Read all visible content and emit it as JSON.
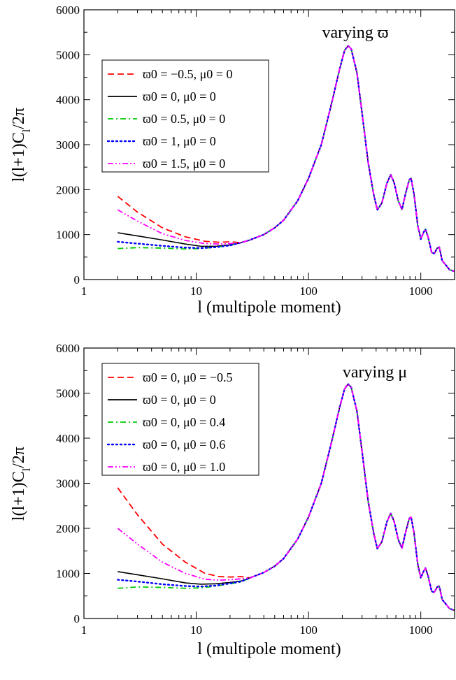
{
  "chart_data": [
    {
      "type": "line",
      "title": "",
      "annotation": "varying ϖ",
      "xlabel": "l (multipole moment)",
      "ylabel": "l(l+1)C_l/2π",
      "ylabel_main": "l(l+1)C",
      "ylabel_sub": "l",
      "ylabel_tail": "/2π",
      "xscale": "log",
      "xlim": [
        1,
        2000
      ],
      "ylim": [
        0,
        6000
      ],
      "grid": false,
      "legend_position": "top-left",
      "xticks": [
        1,
        10,
        100,
        1000
      ],
      "xtick_labels": [
        "1",
        "10",
        "100",
        "1000"
      ],
      "yticks": [
        0,
        1000,
        2000,
        3000,
        4000,
        5000,
        6000
      ],
      "ytick_labels": [
        "0",
        "1000",
        "2000",
        "3000",
        "4000",
        "5000",
        "6000"
      ],
      "series": [
        {
          "label": "ϖ0 = −0.5,  μ0 = 0",
          "color": "#ff0000",
          "dash": "dashed",
          "low_l": [
            [
              2,
              1850
            ],
            [
              3,
              1500
            ],
            [
              5,
              1150
            ],
            [
              8,
              950
            ],
            [
              12,
              850
            ],
            [
              16,
              830
            ],
            [
              20,
              840
            ]
          ]
        },
        {
          "label": "ϖ0 = 0,  μ0 = 0",
          "color": "#000000",
          "dash": "solid",
          "low_l": [
            [
              2,
              1040
            ],
            [
              3,
              970
            ],
            [
              5,
              880
            ],
            [
              8,
              790
            ],
            [
              11,
              740
            ],
            [
              15,
              740
            ],
            [
              20,
              770
            ]
          ]
        },
        {
          "label": "ϖ0 = 0.5,  μ0 = 0",
          "color": "#00cc00",
          "dash": "dashdot",
          "low_l": [
            [
              2,
              690
            ],
            [
              3,
              710
            ],
            [
              5,
              700
            ],
            [
              8,
              680
            ],
            [
              11,
              690
            ],
            [
              15,
              720
            ],
            [
              20,
              760
            ]
          ]
        },
        {
          "label": "ϖ0 = 1,  μ0 = 0",
          "color": "#0000ff",
          "dash": "dotted",
          "low_l": [
            [
              2,
              840
            ],
            [
              3,
              800
            ],
            [
              5,
              750
            ],
            [
              8,
              710
            ],
            [
              11,
              700
            ],
            [
              15,
              720
            ],
            [
              20,
              760
            ]
          ]
        },
        {
          "label": "ϖ0 = 1.5,  μ0 = 0",
          "color": "#ff00ff",
          "dash": "dashdotdot",
          "low_l": [
            [
              2,
              1550
            ],
            [
              3,
              1300
            ],
            [
              5,
              1020
            ],
            [
              8,
              870
            ],
            [
              12,
              800
            ],
            [
              16,
              790
            ],
            [
              20,
              800
            ]
          ]
        }
      ],
      "common_high_l": [
        [
          25,
          820
        ],
        [
          30,
          880
        ],
        [
          40,
          1000
        ],
        [
          50,
          1150
        ],
        [
          60,
          1320
        ],
        [
          80,
          1750
        ],
        [
          100,
          2250
        ],
        [
          130,
          3000
        ],
        [
          160,
          3900
        ],
        [
          190,
          4700
        ],
        [
          210,
          5100
        ],
        [
          225,
          5200
        ],
        [
          240,
          5130
        ],
        [
          270,
          4600
        ],
        [
          300,
          3700
        ],
        [
          340,
          2600
        ],
        [
          380,
          1900
        ],
        [
          410,
          1550
        ],
        [
          450,
          1700
        ],
        [
          500,
          2150
        ],
        [
          540,
          2330
        ],
        [
          580,
          2150
        ],
        [
          630,
          1750
        ],
        [
          680,
          1560
        ],
        [
          730,
          1900
        ],
        [
          790,
          2220
        ],
        [
          820,
          2250
        ],
        [
          870,
          1900
        ],
        [
          940,
          1200
        ],
        [
          1000,
          900
        ],
        [
          1060,
          1050
        ],
        [
          1100,
          1120
        ],
        [
          1160,
          950
        ],
        [
          1250,
          600
        ],
        [
          1320,
          580
        ],
        [
          1400,
          700
        ],
        [
          1460,
          720
        ],
        [
          1550,
          420
        ],
        [
          1700,
          300
        ],
        [
          1800,
          220
        ],
        [
          1900,
          200
        ],
        [
          2000,
          180
        ]
      ]
    },
    {
      "type": "line",
      "title": "",
      "annotation": "varying μ",
      "xlabel": "l (multipole moment)",
      "ylabel": "l(l+1)C_l/2π",
      "ylabel_main": "l(l+1)C",
      "ylabel_sub": "l",
      "ylabel_tail": "/2π",
      "xscale": "log",
      "xlim": [
        1,
        2000
      ],
      "ylim": [
        0,
        6000
      ],
      "grid": false,
      "legend_position": "top-left",
      "xticks": [
        1,
        10,
        100,
        1000
      ],
      "xtick_labels": [
        "1",
        "10",
        "100",
        "1000"
      ],
      "yticks": [
        0,
        1000,
        2000,
        3000,
        4000,
        5000,
        6000
      ],
      "ytick_labels": [
        "0",
        "1000",
        "2000",
        "3000",
        "4000",
        "5000",
        "6000"
      ],
      "series": [
        {
          "label": "ϖ0 = 0,  μ0 = −0.5",
          "color": "#ff0000",
          "dash": "dashed",
          "low_l": [
            [
              2,
              2900
            ],
            [
              3,
              2300
            ],
            [
              5,
              1650
            ],
            [
              8,
              1250
            ],
            [
              12,
              1000
            ],
            [
              16,
              930
            ],
            [
              20,
              920
            ],
            [
              25,
              930
            ]
          ]
        },
        {
          "label": "ϖ0 = 0,  μ0 = 0",
          "color": "#000000",
          "dash": "solid",
          "low_l": [
            [
              2,
              1040
            ],
            [
              3,
              970
            ],
            [
              5,
              880
            ],
            [
              8,
              790
            ],
            [
              11,
              760
            ],
            [
              15,
              770
            ],
            [
              20,
              800
            ],
            [
              25,
              830
            ]
          ]
        },
        {
          "label": "ϖ0 = 0,  μ0 = 0.4",
          "color": "#00cc00",
          "dash": "dashdot",
          "low_l": [
            [
              2,
              670
            ],
            [
              3,
              700
            ],
            [
              5,
              690
            ],
            [
              8,
              670
            ],
            [
              11,
              680
            ],
            [
              15,
              720
            ],
            [
              20,
              770
            ],
            [
              25,
              810
            ]
          ]
        },
        {
          "label": "ϖ0 = 0,  μ0 = 0.6",
          "color": "#0000ff",
          "dash": "dotted",
          "low_l": [
            [
              2,
              860
            ],
            [
              3,
              820
            ],
            [
              5,
              760
            ],
            [
              8,
              720
            ],
            [
              11,
              710
            ],
            [
              15,
              730
            ],
            [
              20,
              780
            ],
            [
              25,
              820
            ]
          ]
        },
        {
          "label": "ϖ0 = 0,  μ0 = 1.0",
          "color": "#ff00ff",
          "dash": "dashdotdot",
          "low_l": [
            [
              2,
              2000
            ],
            [
              3,
              1650
            ],
            [
              5,
              1250
            ],
            [
              8,
              1000
            ],
            [
              12,
              870
            ],
            [
              16,
              850
            ],
            [
              20,
              860
            ],
            [
              25,
              880
            ]
          ]
        }
      ],
      "common_high_l": [
        [
          30,
          900
        ],
        [
          40,
          1020
        ],
        [
          50,
          1160
        ],
        [
          60,
          1330
        ],
        [
          80,
          1760
        ],
        [
          100,
          2250
        ],
        [
          130,
          3000
        ],
        [
          160,
          3900
        ],
        [
          190,
          4700
        ],
        [
          210,
          5100
        ],
        [
          225,
          5200
        ],
        [
          240,
          5130
        ],
        [
          270,
          4600
        ],
        [
          300,
          3700
        ],
        [
          340,
          2600
        ],
        [
          380,
          1900
        ],
        [
          410,
          1550
        ],
        [
          450,
          1700
        ],
        [
          500,
          2150
        ],
        [
          540,
          2330
        ],
        [
          580,
          2150
        ],
        [
          630,
          1750
        ],
        [
          680,
          1560
        ],
        [
          730,
          1900
        ],
        [
          790,
          2220
        ],
        [
          820,
          2250
        ],
        [
          870,
          1900
        ],
        [
          940,
          1200
        ],
        [
          1000,
          900
        ],
        [
          1060,
          1050
        ],
        [
          1100,
          1120
        ],
        [
          1160,
          950
        ],
        [
          1250,
          600
        ],
        [
          1320,
          580
        ],
        [
          1400,
          700
        ],
        [
          1460,
          720
        ],
        [
          1550,
          420
        ],
        [
          1700,
          300
        ],
        [
          1800,
          220
        ],
        [
          1900,
          200
        ],
        [
          2000,
          180
        ]
      ]
    }
  ]
}
